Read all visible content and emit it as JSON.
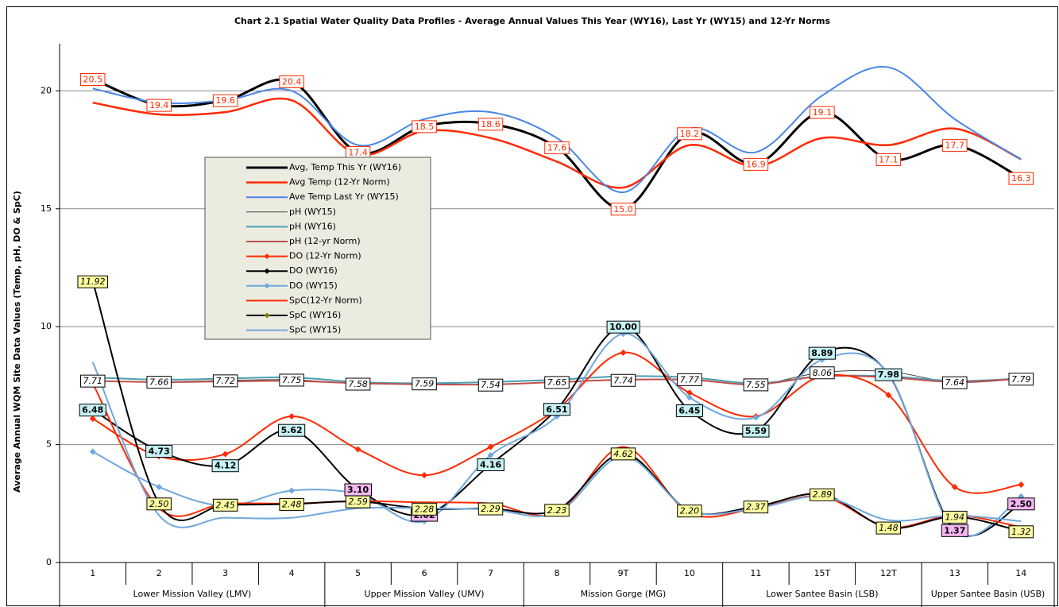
{
  "chart_data": {
    "type": "line",
    "title": "Chart 2.1 Spatial Water Quality Data Profiles - Average Annual Values This Year (WY16), Last Yr (WY15) and 12-Yr Norms",
    "y_label": "Average Annual WQM Site Data Values (Temp, pH, DO & SpC)",
    "categories": [
      "1",
      "2",
      "3",
      "4",
      "5",
      "6",
      "7",
      "8",
      "9T",
      "10",
      "11",
      "15T",
      "12T",
      "13",
      "14"
    ],
    "groups": [
      {
        "label": "Lower Mission Valley (LMV)",
        "count": 4
      },
      {
        "label": "Upper Mission Valley (UMV)",
        "count": 3
      },
      {
        "label": "Mission Gorge (MG)",
        "count": 3
      },
      {
        "label": "Lower Santee Basin (LSB)",
        "count": 3
      },
      {
        "label": "Upper Santee Basin (USB)",
        "count": 2
      }
    ],
    "ylim": [
      0,
      22
    ],
    "yticks": [
      0,
      5,
      10,
      15,
      20
    ],
    "grid": true,
    "smooth": true,
    "series": [
      {
        "name": "Avg, Temp This Yr (WY16)",
        "color": "#000000",
        "width": 3,
        "values": [
          20.5,
          19.4,
          19.6,
          20.4,
          17.4,
          18.5,
          18.6,
          17.6,
          15.0,
          18.2,
          16.9,
          19.1,
          17.1,
          17.7,
          16.3
        ],
        "value_labels": [
          "20.5",
          "19.4",
          "19.6",
          "20.4",
          "17.4",
          "18.5",
          "18.6",
          "17.6",
          "15.0",
          "18.2",
          "16.9",
          "19.1",
          "17.1",
          "17.7",
          "16.3"
        ],
        "label_fill": "#ffffff",
        "label_border": "#ff2a00",
        "label_text": "#ff2a00",
        "label_font": "normal"
      },
      {
        "name": "Avg Temp (12-Yr Norm)",
        "color": "#ff2a00",
        "width": 2.5,
        "values": [
          19.5,
          19.0,
          19.1,
          19.6,
          17.3,
          18.3,
          18.0,
          17.0,
          15.9,
          17.7,
          16.8,
          18.0,
          17.7,
          18.4,
          17.1
        ]
      },
      {
        "name": "Ave Temp Last Yr (WY15)",
        "color": "#4a86e8",
        "width": 2,
        "values": [
          20.1,
          19.5,
          19.6,
          20.0,
          17.7,
          18.8,
          19.1,
          18.0,
          15.7,
          18.4,
          17.4,
          19.8,
          21.0,
          18.8,
          17.1
        ]
      },
      {
        "name": "pH (WY15)",
        "color": "#444444",
        "width": 1,
        "values": [
          7.71,
          7.66,
          7.72,
          7.75,
          7.58,
          7.59,
          7.54,
          7.65,
          7.74,
          7.77,
          7.55,
          8.06,
          8.1,
          7.64,
          7.79
        ],
        "value_labels": [
          "7.71",
          "7.66",
          "7.72",
          "7.75",
          "7.58",
          "7.59",
          "7.54",
          "7.65",
          "7.74",
          "7.77",
          "7.55",
          "8.06",
          null,
          "7.64",
          "7.79"
        ],
        "label_fill": "#ffffff",
        "label_border": "#000000",
        "label_text": "#000000",
        "label_font": "italic"
      },
      {
        "name": "pH (WY16)",
        "color": "#4b9fb4",
        "width": 2,
        "values": [
          7.85,
          7.75,
          7.8,
          7.85,
          7.65,
          7.6,
          7.65,
          7.75,
          7.9,
          7.85,
          7.6,
          7.9,
          7.9,
          7.7,
          7.8
        ]
      },
      {
        "name": "pH (12-yr Norm)",
        "color": "#c0504d",
        "width": 2,
        "values": [
          7.7,
          7.65,
          7.68,
          7.7,
          7.6,
          7.55,
          7.55,
          7.65,
          7.75,
          7.75,
          7.55,
          7.9,
          7.85,
          7.65,
          7.8
        ]
      },
      {
        "name": "DO (12-Yr Norm)",
        "color": "#ff2a00",
        "width": 2,
        "marker": "diamond",
        "marker_color": "#ff2a00",
        "values": [
          6.1,
          4.5,
          4.6,
          6.2,
          4.8,
          3.7,
          4.9,
          6.5,
          8.9,
          7.2,
          6.2,
          7.9,
          7.1,
          3.2,
          3.3
        ]
      },
      {
        "name": "DO (WY16)",
        "color": "#000000",
        "width": 2,
        "marker": "diamond",
        "marker_color": "#000000",
        "values": [
          6.48,
          4.73,
          4.12,
          5.62,
          3.1,
          2.02,
          4.16,
          6.51,
          10.0,
          6.45,
          5.59,
          8.89,
          7.98,
          1.37,
          2.5
        ],
        "value_labels": [
          "6.48",
          "4.73",
          "4.12",
          "5.62",
          "3.10",
          "2.02",
          "4.16",
          "6.51",
          "10.00",
          "6.45",
          "5.59",
          "8.89",
          "7.98",
          "1.37",
          "2.50"
        ],
        "label_fill": [
          "#c5f2f5",
          "#c5f2f5",
          "#c5f2f5",
          "#c5f2f5",
          "#f4b5f0",
          "#f4b5f0",
          "#c5f2f5",
          "#c5f2f5",
          "#c5f2f5",
          "#c5f2f5",
          "#c5f2f5",
          "#c5f2f5",
          "#c5f2f5",
          "#f4b5f0",
          "#f4b5f0"
        ],
        "label_border": "#000000",
        "label_text": "#000000",
        "label_font": "bold"
      },
      {
        "name": "DO (WY15)",
        "color": "#6fa8dc",
        "width": 2,
        "marker": "diamond",
        "marker_color": "#6fa8dc",
        "values": [
          4.7,
          3.2,
          2.4,
          3.05,
          2.9,
          1.75,
          4.55,
          6.2,
          9.7,
          7.0,
          6.15,
          8.6,
          8.0,
          1.3,
          2.8
        ]
      },
      {
        "name": "SpC(12-Yr Norm)",
        "color": "#ff2a00",
        "width": 2,
        "values": [
          7.6,
          2.3,
          2.5,
          2.5,
          2.6,
          2.55,
          2.5,
          2.1,
          4.9,
          2.1,
          2.3,
          2.8,
          1.5,
          2.0,
          1.5
        ]
      },
      {
        "name": "SpC (WY16)",
        "color": "#000000",
        "width": 2,
        "marker": "diamond",
        "marker_color": "#808000",
        "values": [
          11.92,
          2.5,
          2.45,
          2.48,
          2.59,
          2.28,
          2.29,
          2.23,
          4.62,
          2.2,
          2.37,
          2.89,
          1.48,
          1.94,
          1.32
        ],
        "value_labels": [
          "11.92",
          "2.50",
          "2.45",
          "2.48",
          "2.59",
          "2.28",
          "2.29",
          "2.23",
          "4.62",
          "2.20",
          "2.37",
          "2.89",
          "1.48",
          "1.94",
          "1.32"
        ],
        "label_fill": "#ffffa0",
        "label_border": "#000000",
        "label_text": "#000000",
        "label_font": "italic"
      },
      {
        "name": "SpC (WY15)",
        "color": "#6fa8dc",
        "width": 2,
        "values": [
          8.5,
          2.0,
          1.9,
          1.9,
          2.3,
          2.3,
          2.25,
          2.1,
          4.5,
          2.2,
          2.3,
          2.8,
          1.8,
          2.0,
          1.75
        ]
      }
    ]
  }
}
